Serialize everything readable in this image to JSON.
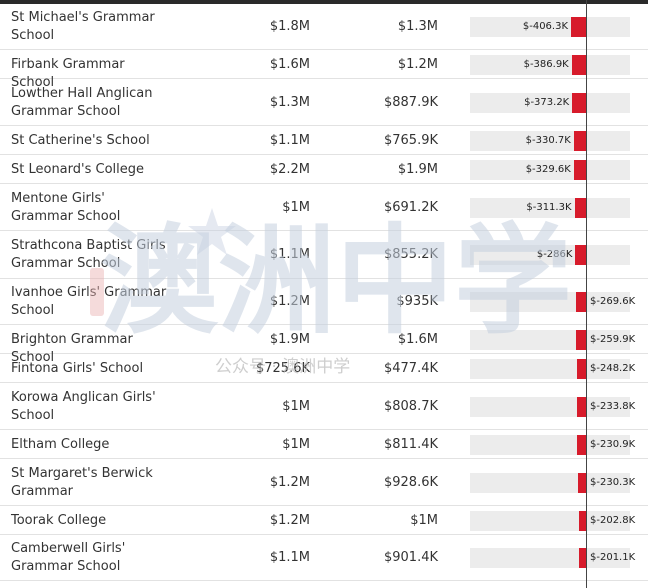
{
  "rows": [
    {
      "school": "St Michael's Grammar School",
      "income_a": "$1.8M",
      "income_b": "$1.3M",
      "change_label": "$-406.3K",
      "change_k": -406.3
    },
    {
      "school": "Firbank Grammar School",
      "income_a": "$1.6M",
      "income_b": "$1.2M",
      "change_label": "$-386.9K",
      "change_k": -386.9
    },
    {
      "school": "Lowther Hall Anglican Grammar School",
      "income_a": "$1.3M",
      "income_b": "$887.9K",
      "change_label": "$-373.2K",
      "change_k": -373.2
    },
    {
      "school": "St Catherine's School",
      "income_a": "$1.1M",
      "income_b": "$765.9K",
      "change_label": "$-330.7K",
      "change_k": -330.7
    },
    {
      "school": "St Leonard's College",
      "income_a": "$2.2M",
      "income_b": "$1.9M",
      "change_label": "$-329.6K",
      "change_k": -329.6
    },
    {
      "school": "Mentone Girls' Grammar School",
      "income_a": "$1M",
      "income_b": "$691.2K",
      "change_label": "$-311.3K",
      "change_k": -311.3
    },
    {
      "school": "Strathcona Baptist Girls Grammar School",
      "income_a": "$1.1M",
      "income_b": "$855.2K",
      "change_label": "$-286K",
      "change_k": -286
    },
    {
      "school": "Ivanhoe Girls' Grammar School",
      "income_a": "$1.2M",
      "income_b": "$935K",
      "change_label": "$-269.6K",
      "change_k": -269.6
    },
    {
      "school": "Brighton Grammar School",
      "income_a": "$1.9M",
      "income_b": "$1.6M",
      "change_label": "$-259.9K",
      "change_k": -259.9
    },
    {
      "school": "Fintona Girls' School",
      "income_a": "$725.6K",
      "income_b": "$477.4K",
      "change_label": "$-248.2K",
      "change_k": -248.2
    },
    {
      "school": "Korowa Anglican Girls' School",
      "income_a": "$1M",
      "income_b": "$808.7K",
      "change_label": "$-233.8K",
      "change_k": -233.8
    },
    {
      "school": "Eltham College",
      "income_a": "$1M",
      "income_b": "$811.4K",
      "change_label": "$-230.9K",
      "change_k": -230.9
    },
    {
      "school": "St Margaret's Berwick Grammar",
      "income_a": "$1.2M",
      "income_b": "$928.6K",
      "change_label": "$-230.3K",
      "change_k": -230.3
    },
    {
      "school": "Toorak College",
      "income_a": "$1.2M",
      "income_b": "$1M",
      "change_label": "$-202.8K",
      "change_k": -202.8
    },
    {
      "school": "Camberwell Girls' Grammar School",
      "income_a": "$1.1M",
      "income_b": "$901.4K",
      "change_label": "$-201.1K",
      "change_k": -201.1
    }
  ],
  "watermark": {
    "big_text": "澳洲中学",
    "sub_text": "公众号 · 澳洲中学"
  },
  "colors": {
    "bar": "#d71b2b",
    "track": "#ececec",
    "watermark": "#c5cfdf"
  }
}
